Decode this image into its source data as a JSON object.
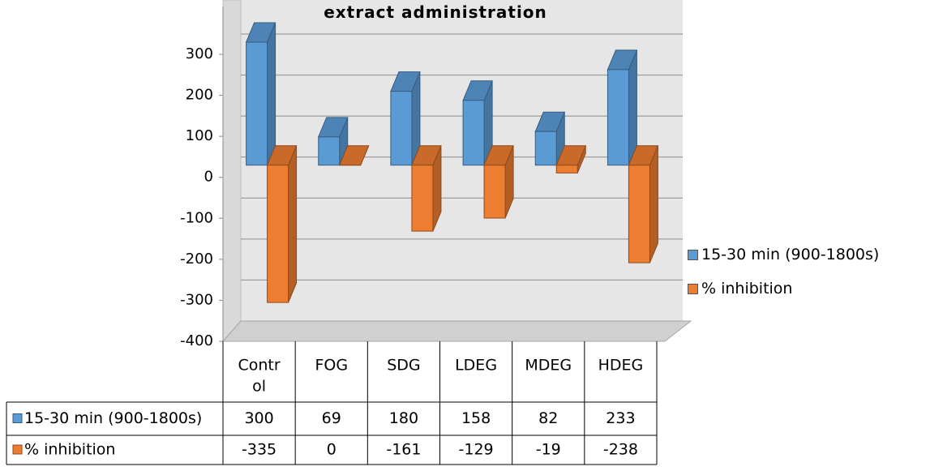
{
  "chart_data": {
    "type": "bar",
    "title": "extract administration",
    "categories": [
      "Control",
      "FOG",
      "SDG",
      "LDEG",
      "MDEG",
      "HDEG"
    ],
    "category_labels": [
      "Contr\nol",
      "FOG",
      "SDG",
      "LDEG",
      "MDEG",
      "HDEG"
    ],
    "series": [
      {
        "name": "15-30 min (900-1800s)",
        "values": [
          300,
          69,
          180,
          158,
          82,
          233
        ],
        "color": "#5b9bd5"
      },
      {
        "name": "% inhibition",
        "values": [
          -335,
          0,
          -161,
          -129,
          -19,
          -238
        ],
        "color": "#ed7d31"
      }
    ],
    "yticks": [
      300,
      200,
      100,
      0,
      -100,
      -200,
      -300,
      -400
    ],
    "ylim": [
      -400,
      300
    ],
    "grid": true,
    "legend_position": "right",
    "data_table": true,
    "style": "3d-column"
  }
}
